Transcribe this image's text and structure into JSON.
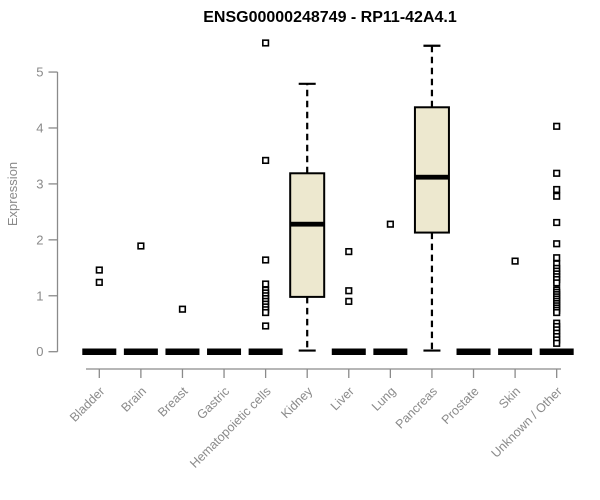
{
  "title": "ENSG00000248749 - RP11-42A4.1",
  "colors": {
    "box_fill": "#EDE8CF",
    "box_stroke": "#000000",
    "median_color": "#000000",
    "outlier_stroke": "#000000",
    "outlier_fill": "#ffffff",
    "axis_color": "#8a8a8a",
    "label_color": "#8a8a8a",
    "title_color": "#000000"
  },
  "chart_data": {
    "type": "boxplot",
    "title": "ENSG00000248749 - RP11-42A4.1",
    "ylabel": "Expression",
    "xlabel": "",
    "ylim": [
      0,
      5.6
    ],
    "yticks": [
      0,
      1,
      2,
      3,
      4,
      5
    ],
    "grid": false,
    "legend": false,
    "categories": [
      "Bladder",
      "Brain",
      "Breast",
      "Gastric",
      "Hematopoietic cells",
      "Kidney",
      "Liver",
      "Lung",
      "Pancreas",
      "Prostate",
      "Skin",
      "Unknown / Other"
    ],
    "series": [
      {
        "name": "Bladder",
        "whisker_low": 0,
        "q1": 0,
        "median": 0,
        "q3": 0,
        "whisker_high": 0,
        "outliers": [
          1.46,
          1.24
        ]
      },
      {
        "name": "Brain",
        "whisker_low": 0,
        "q1": 0,
        "median": 0,
        "q3": 0,
        "whisker_high": 0,
        "outliers": [
          1.89
        ]
      },
      {
        "name": "Breast",
        "whisker_low": 0,
        "q1": 0,
        "median": 0,
        "q3": 0,
        "whisker_high": 0,
        "outliers": [
          0.76
        ]
      },
      {
        "name": "Gastric",
        "whisker_low": 0,
        "q1": 0,
        "median": 0,
        "q3": 0,
        "whisker_high": 0,
        "outliers": []
      },
      {
        "name": "Hematopoietic cells",
        "whisker_low": 0,
        "q1": 0,
        "median": 0,
        "q3": 0,
        "whisker_high": 0,
        "outliers": [
          5.52,
          3.42,
          1.64,
          1.21,
          1.1,
          1.05,
          1.0,
          0.95,
          0.9,
          0.85,
          0.8,
          0.75,
          0.7,
          0.46
        ]
      },
      {
        "name": "Kidney",
        "whisker_low": 0.02,
        "q1": 0.98,
        "median": 2.28,
        "q3": 3.19,
        "whisker_high": 4.79,
        "outliers": []
      },
      {
        "name": "Liver",
        "whisker_low": 0,
        "q1": 0,
        "median": 0,
        "q3": 0,
        "whisker_high": 0,
        "outliers": [
          1.79,
          1.09,
          0.9
        ]
      },
      {
        "name": "Lung",
        "whisker_low": 0,
        "q1": 0,
        "median": 0,
        "q3": 0,
        "whisker_high": 0,
        "outliers": [
          2.28
        ]
      },
      {
        "name": "Pancreas",
        "whisker_low": 0.02,
        "q1": 2.13,
        "median": 3.12,
        "q3": 4.37,
        "whisker_high": 5.47,
        "outliers": []
      },
      {
        "name": "Prostate",
        "whisker_low": 0,
        "q1": 0,
        "median": 0,
        "q3": 0,
        "whisker_high": 0,
        "outliers": []
      },
      {
        "name": "Skin",
        "whisker_low": 0,
        "q1": 0,
        "median": 0,
        "q3": 0,
        "whisker_high": 0,
        "outliers": [
          1.62
        ]
      },
      {
        "name": "Unknown / Other",
        "whisker_low": 0,
        "q1": 0,
        "median": 0,
        "q3": 0,
        "whisker_high": 0,
        "outliers": [
          4.03,
          3.19,
          2.9,
          2.78,
          2.31,
          1.93,
          1.68,
          1.57,
          1.49,
          1.44,
          1.39,
          1.34,
          1.29,
          1.23,
          1.1,
          1.06,
          1.02,
          0.98,
          0.94,
          0.9,
          0.86,
          0.82,
          0.78,
          0.74,
          0.7,
          0.51,
          0.45,
          0.39,
          0.33,
          0.27,
          0.21,
          0.15
        ]
      }
    ]
  }
}
